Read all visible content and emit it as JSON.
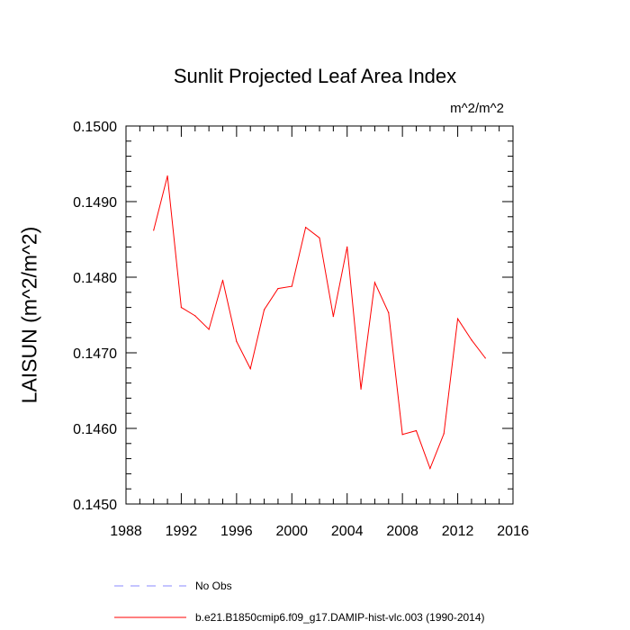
{
  "chart_data": {
    "type": "line",
    "title": "Sunlit Projected Leaf Area Index",
    "units_label": "m^2/m^2",
    "ylabel": "LAISUN  (m^2/m^2)",
    "xlabel": "",
    "xlim": [
      1988,
      2016
    ],
    "ylim": [
      0.145,
      0.15
    ],
    "x_ticks": [
      1988,
      1992,
      1996,
      2000,
      2004,
      2008,
      2012,
      2016
    ],
    "x_tick_labels": [
      "1988",
      "1992",
      "1996",
      "2000",
      "2004",
      "2008",
      "2012",
      "2016"
    ],
    "y_ticks": [
      0.145,
      0.146,
      0.147,
      0.148,
      0.149,
      0.15
    ],
    "y_tick_labels": [
      "0.1450",
      "0.1460",
      "0.1470",
      "0.1480",
      "0.1490",
      "0.1500"
    ],
    "series": [
      {
        "name": "b.e21.B1850cmip6.f09_g17.DAMIP-hist-vlc.003 (1990-2014)",
        "color": "#ff0000",
        "x": [
          1990,
          1991,
          1992,
          1993,
          1994,
          1995,
          1996,
          1997,
          1998,
          1999,
          2000,
          2001,
          2002,
          2003,
          2004,
          2005,
          2006,
          2007,
          2008,
          2009,
          2010,
          2011,
          2012,
          2013,
          2014
        ],
        "y": [
          0.14862,
          0.14934,
          0.1476,
          0.14749,
          0.14731,
          0.14796,
          0.14715,
          0.14679,
          0.14757,
          0.14785,
          0.14788,
          0.14866,
          0.14852,
          0.14748,
          0.1484,
          0.14652,
          0.14793,
          0.14753,
          0.14592,
          0.14597,
          0.14547,
          0.14593,
          0.14745,
          0.14717,
          0.14693
        ]
      }
    ],
    "legend": [
      {
        "label": "No Obs",
        "color": "#8888ff",
        "style": "dashed"
      },
      {
        "label": "b.e21.B1850cmip6.f09_g17.DAMIP-hist-vlc.003 (1990-2014)",
        "color": "#ff0000",
        "style": "solid"
      }
    ]
  }
}
